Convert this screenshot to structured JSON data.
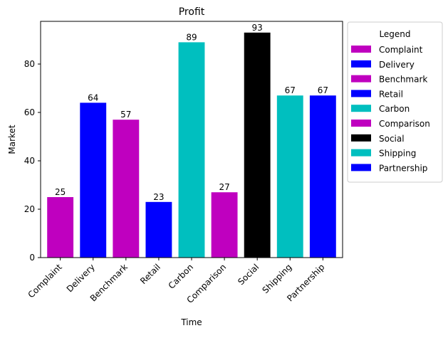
{
  "chart_data": {
    "type": "bar",
    "title": "Profit",
    "xlabel": "Time",
    "ylabel": "Market",
    "categories": [
      "Complaint",
      "Delivery",
      "Benchmark",
      "Retail",
      "Carbon",
      "Comparison",
      "Social",
      "Shipping",
      "Partnership"
    ],
    "values": [
      25,
      64,
      57,
      23,
      89,
      27,
      93,
      67,
      67
    ],
    "colors": [
      "#bf00bf",
      "#0000ff",
      "#bf00bf",
      "#0000ff",
      "#00bfbf",
      "#bf00bf",
      "#000000",
      "#00bfbf",
      "#0000ff"
    ],
    "ylim": [
      0,
      97.65
    ],
    "yticks": [
      0,
      20,
      40,
      60,
      80
    ],
    "grid": false,
    "legend": {
      "title": "Legend",
      "placement": "outside-top-right",
      "entries": [
        "Complaint",
        "Delivery",
        "Benchmark",
        "Retail",
        "Carbon",
        "Comparison",
        "Social",
        "Shipping",
        "Partnership"
      ]
    }
  }
}
